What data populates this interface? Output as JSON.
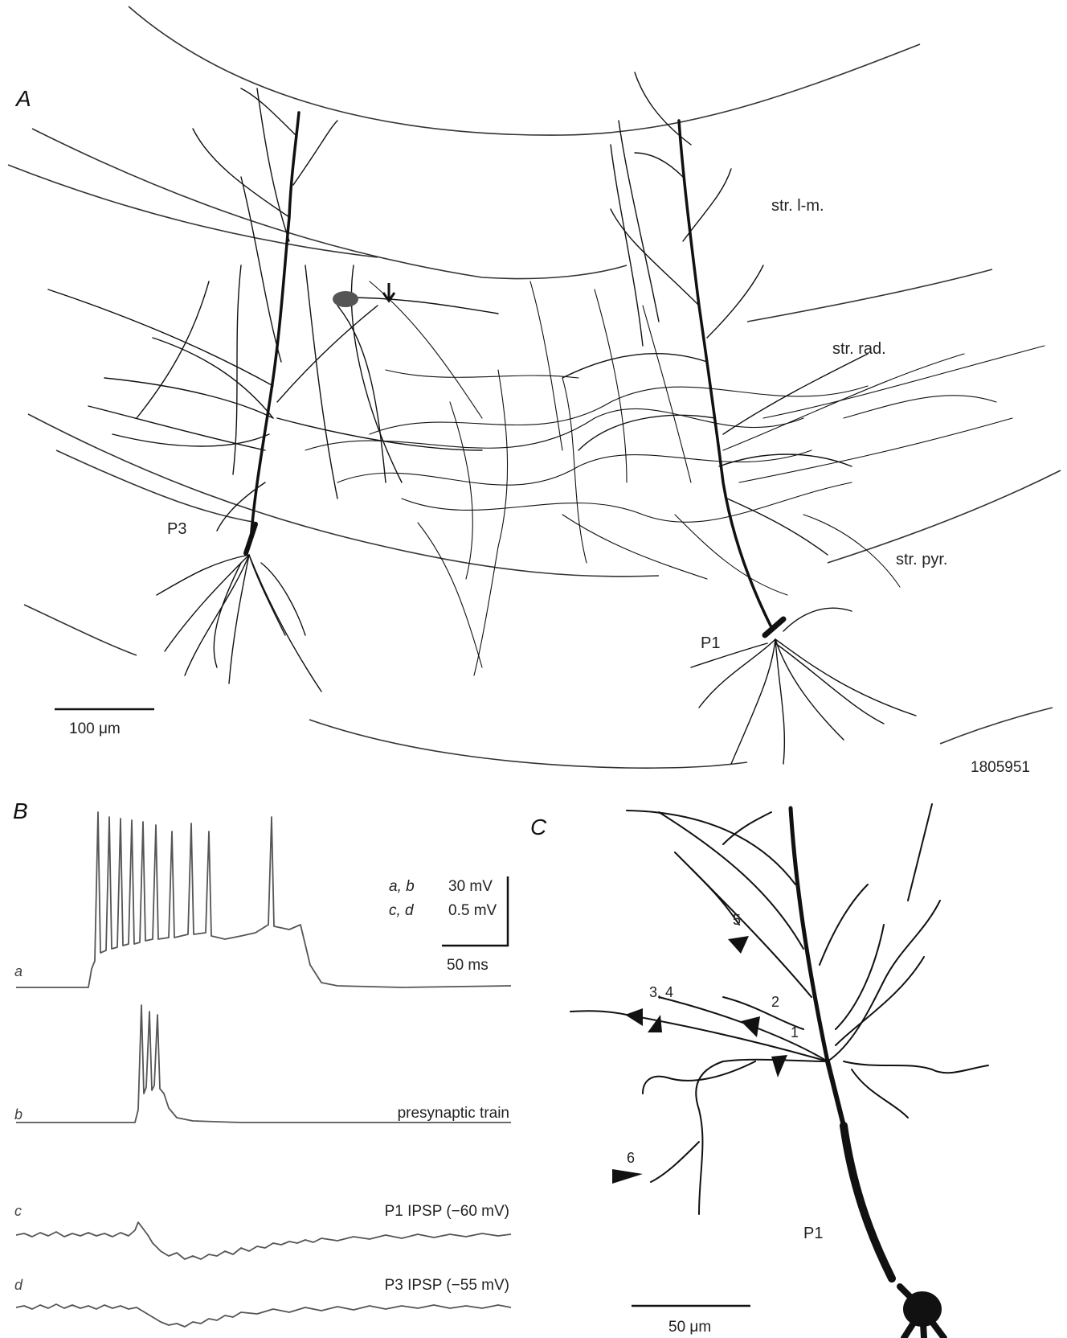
{
  "panels": {
    "A": {
      "label": "A",
      "layers": [
        "str. l-m.",
        "str. rad.",
        "str. pyr."
      ],
      "cells": [
        "P3",
        "P1"
      ],
      "scale_bar": "100 μm",
      "id": "1805951"
    },
    "B": {
      "label": "B",
      "scale": {
        "ab_vars": "a, b",
        "ab_value": "30 mV",
        "cd_vars": "c, d",
        "cd_value": "0.5 mV",
        "time": "50 ms"
      },
      "traces": [
        {
          "id": "a",
          "caption": ""
        },
        {
          "id": "b",
          "caption": "presynaptic train"
        },
        {
          "id": "c",
          "caption": "P1 IPSP (−60 mV)"
        },
        {
          "id": "d",
          "caption": "P3 IPSP (−55 mV)"
        }
      ]
    },
    "C": {
      "label": "C",
      "cell": "P1",
      "scale_bar": "50 μm",
      "contacts": [
        "1",
        "2",
        "3, 4",
        "5",
        "6"
      ]
    }
  }
}
